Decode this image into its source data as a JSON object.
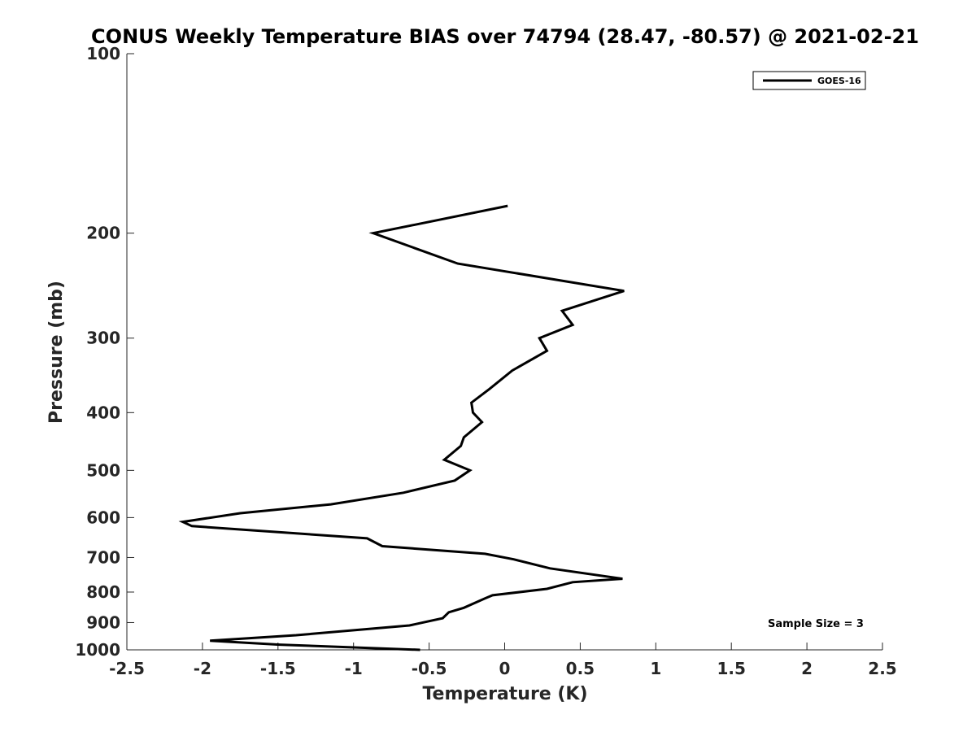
{
  "chart_data": {
    "type": "line",
    "title": "CONUS Weekly Temperature BIAS over 74794 (28.47, -80.57) @ 2021-02-21",
    "xlabel": "Temperature (K)",
    "ylabel": "Pressure (mb)",
    "xlim": [
      -2.5,
      2.5
    ],
    "ylim": [
      100,
      1000
    ],
    "y_scale": "log",
    "y_reversed": true,
    "grid": false,
    "x_ticks": [
      -2.5,
      -2,
      -1.5,
      -1,
      -0.5,
      0,
      0.5,
      1,
      1.5,
      2,
      2.5
    ],
    "x_tick_labels": [
      "-2.5",
      "-2",
      "-1.5",
      "-1",
      "-0.5",
      "0",
      "0.5",
      "1",
      "1.5",
      "2",
      "2.5"
    ],
    "y_ticks": [
      100,
      200,
      300,
      400,
      500,
      600,
      700,
      800,
      900,
      1000
    ],
    "y_tick_labels": [
      "100",
      "200",
      "300",
      "400",
      "500",
      "600",
      "700",
      "800",
      "900",
      "1000"
    ],
    "legend_position": "top-right",
    "annotation": "Sample Size = 3",
    "series": [
      {
        "name": "GOES-16",
        "color": "#000000",
        "x": [
          0.02,
          -0.87,
          -0.31,
          0.79,
          0.38,
          0.45,
          0.23,
          0.28,
          0.05,
          -0.1,
          -0.22,
          -0.21,
          -0.15,
          -0.27,
          -0.29,
          -0.4,
          -0.23,
          -0.33,
          -0.67,
          -1.15,
          -1.75,
          -2.13,
          -2.07,
          -0.91,
          -0.81,
          -0.13,
          0.06,
          0.3,
          0.78,
          0.45,
          0.28,
          -0.08,
          -0.13,
          -0.27,
          -0.37,
          -0.41,
          -0.63,
          -1.38,
          -1.95,
          -1.49,
          -0.56
        ],
        "y": [
          180,
          200,
          225,
          250,
          270,
          285,
          300,
          315,
          340,
          365,
          385,
          400,
          415,
          440,
          455,
          480,
          500,
          520,
          545,
          570,
          590,
          610,
          620,
          650,
          670,
          690,
          705,
          730,
          760,
          770,
          790,
          810,
          820,
          850,
          865,
          885,
          910,
          945,
          965,
          980,
          1000
        ]
      }
    ]
  }
}
